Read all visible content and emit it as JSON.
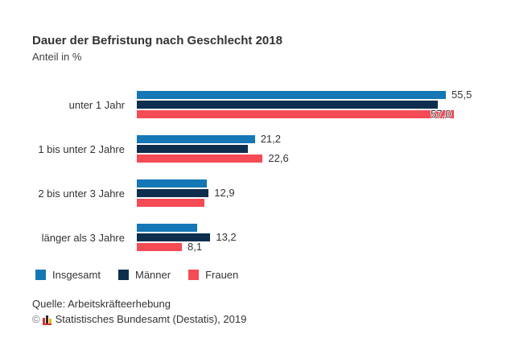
{
  "title": "Dauer der Befristung nach Geschlecht 2018",
  "subtitle": "Anteil in %",
  "legend": {
    "items": [
      {
        "label": "Insgesamt",
        "color": "#1577b5"
      },
      {
        "label": "Männer",
        "color": "#0e2e4e"
      },
      {
        "label": "Frauen",
        "color": "#f44b55"
      }
    ]
  },
  "footer": {
    "source": "Quelle: Arbeitskräfteerhebung",
    "copyright_symbol": "©",
    "copyright_text": "Statistisches Bundesamt (Destatis), 2019",
    "logo_icon": "destatis-logo",
    "logo_colors": {
      "red": "#d7332c",
      "black": "#2b2b2b",
      "gold": "#eeb111"
    }
  },
  "chart_data": {
    "type": "bar",
    "orientation": "horizontal",
    "title": "Dauer der Befristung nach Geschlecht 2018",
    "xlabel": "Anteil in %",
    "ylabel": "",
    "xlim": [
      0,
      60
    ],
    "grid": false,
    "legend_position": "bottom",
    "value_label_format": "comma-decimal",
    "categories": [
      "unter 1 Jahr",
      "1 bis unter 2 Jahre",
      "2 bis unter 3 Jahre",
      "länger als 3 Jahre"
    ],
    "series": [
      {
        "name": "Insgesamt",
        "color": "#1577b5",
        "values": [
          55.5,
          21.2,
          12.6,
          10.8
        ],
        "labels": [
          {
            "text": "55,5"
          },
          {
            "text": "21,2"
          },
          null,
          null
        ]
      },
      {
        "name": "Männer",
        "color": "#0e2e4e",
        "values": [
          54.1,
          19.9,
          12.9,
          13.2
        ],
        "labels": [
          null,
          null,
          {
            "text": "12,9"
          },
          {
            "text": "13,2"
          }
        ]
      },
      {
        "name": "Frauen",
        "color": "#f44b55",
        "values": [
          57.0,
          22.6,
          12.2,
          8.1
        ],
        "labels": [
          {
            "text": "57,0",
            "inside": true
          },
          {
            "text": "22,6"
          },
          null,
          {
            "text": "8,1"
          }
        ]
      }
    ]
  }
}
